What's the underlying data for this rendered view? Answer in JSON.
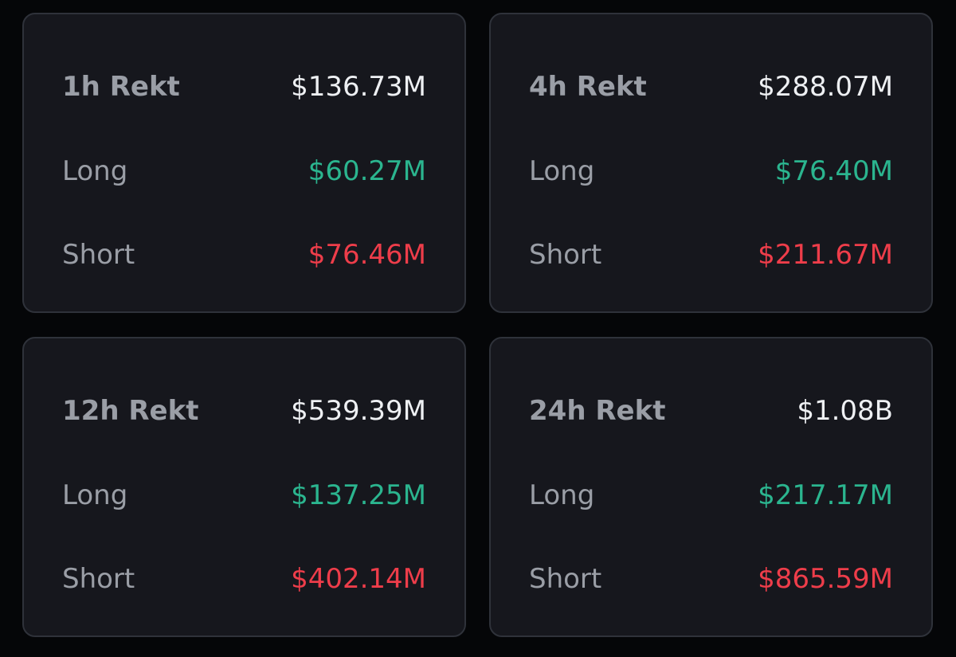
{
  "colors": {
    "background": "#050608",
    "card": "#16171d",
    "card_border": "#2f323a",
    "label": "#9a9ea6",
    "total_value": "#eef0f3",
    "long_value": "#2bb58f",
    "short_value": "#ee3d4a"
  },
  "cards": [
    {
      "title": "1h Rekt",
      "total": "$136.73M",
      "long_label": "Long",
      "long": "$60.27M",
      "short_label": "Short",
      "short": "$76.46M"
    },
    {
      "title": "4h Rekt",
      "total": "$288.07M",
      "long_label": "Long",
      "long": "$76.40M",
      "short_label": "Short",
      "short": "$211.67M"
    },
    {
      "title": "12h Rekt",
      "total": "$539.39M",
      "long_label": "Long",
      "long": "$137.25M",
      "short_label": "Short",
      "short": "$402.14M"
    },
    {
      "title": "24h Rekt",
      "total": "$1.08B",
      "long_label": "Long",
      "long": "$217.17M",
      "short_label": "Short",
      "short": "$865.59M"
    }
  ]
}
